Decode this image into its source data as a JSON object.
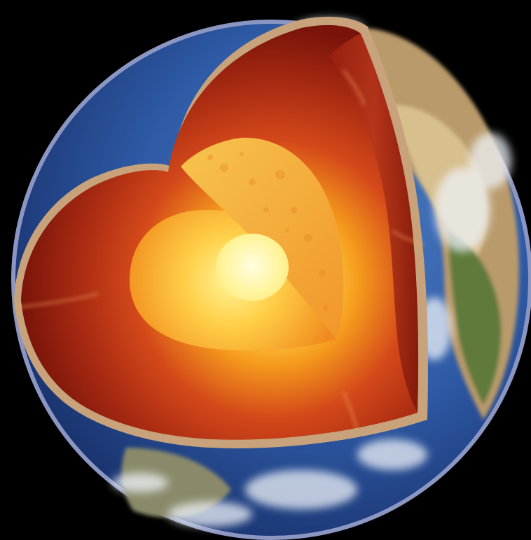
{
  "image": {
    "subject": "earth-layers-cutaway",
    "layers": [
      "crust",
      "mantle",
      "outer-core",
      "inner-core"
    ],
    "colors": {
      "background": "#000000",
      "atmosphere_rim": "#9aa6d8",
      "ocean": "#2e5aa6",
      "ocean_deep": "#18306a",
      "land": "#b99a6a",
      "land_green": "#5e7a3a",
      "cloud": "#eef2f8",
      "crust": "#c7a27a",
      "mantle_outer": "#8e1a0e",
      "mantle_mid": "#c83a12",
      "mantle_inner": "#ef7a16",
      "outer_core": "#f6b12a",
      "inner_core": "#fff6a0"
    }
  }
}
